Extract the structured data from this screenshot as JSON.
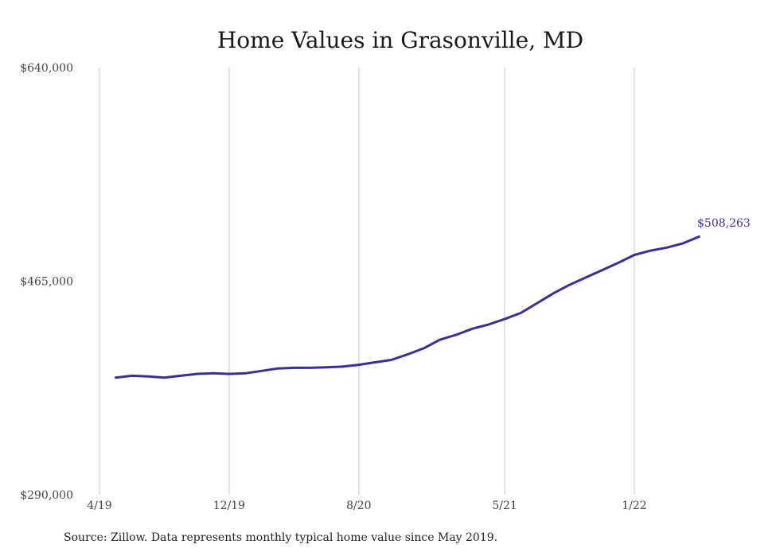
{
  "chart_data": {
    "type": "line",
    "title": "Home Values in Grasonville, MD",
    "xlabel": "",
    "ylabel": "",
    "x_tick_labels": [
      "4/19",
      "12/19",
      "8/20",
      "5/21",
      "1/22"
    ],
    "y_tick_labels": [
      "$640,000",
      "$465,000",
      "$290,000"
    ],
    "y_ticks": [
      640000,
      465000,
      290000
    ],
    "ylim": [
      290000,
      640000
    ],
    "grid": "vertical",
    "x": [
      "2019-05",
      "2019-06",
      "2019-07",
      "2019-08",
      "2019-09",
      "2019-10",
      "2019-11",
      "2019-12",
      "2020-01",
      "2020-02",
      "2020-03",
      "2020-04",
      "2020-05",
      "2020-06",
      "2020-07",
      "2020-08",
      "2020-09",
      "2020-10",
      "2020-11",
      "2020-12",
      "2021-01",
      "2021-02",
      "2021-03",
      "2021-04",
      "2021-05",
      "2021-06",
      "2021-07",
      "2021-08",
      "2021-09",
      "2021-10",
      "2021-11",
      "2021-12",
      "2022-01",
      "2022-02",
      "2022-03",
      "2022-04",
      "2022-05"
    ],
    "series": [
      {
        "color": "#3a2e99",
        "values": [
          386000,
          387500,
          387000,
          386000,
          387500,
          389000,
          389500,
          389000,
          389500,
          391500,
          393500,
          394000,
          394000,
          394500,
          395000,
          396500,
          398500,
          400500,
          405000,
          410000,
          417000,
          421000,
          426000,
          429500,
          434000,
          439000,
          447000,
          455000,
          462000,
          468000,
          474000,
          480000,
          486500,
          490000,
          492500,
          496000,
          501500
        ]
      }
    ],
    "end_label": "$508,263",
    "source": "Source: Zillow. Data represents monthly typical home value since May 2019."
  }
}
